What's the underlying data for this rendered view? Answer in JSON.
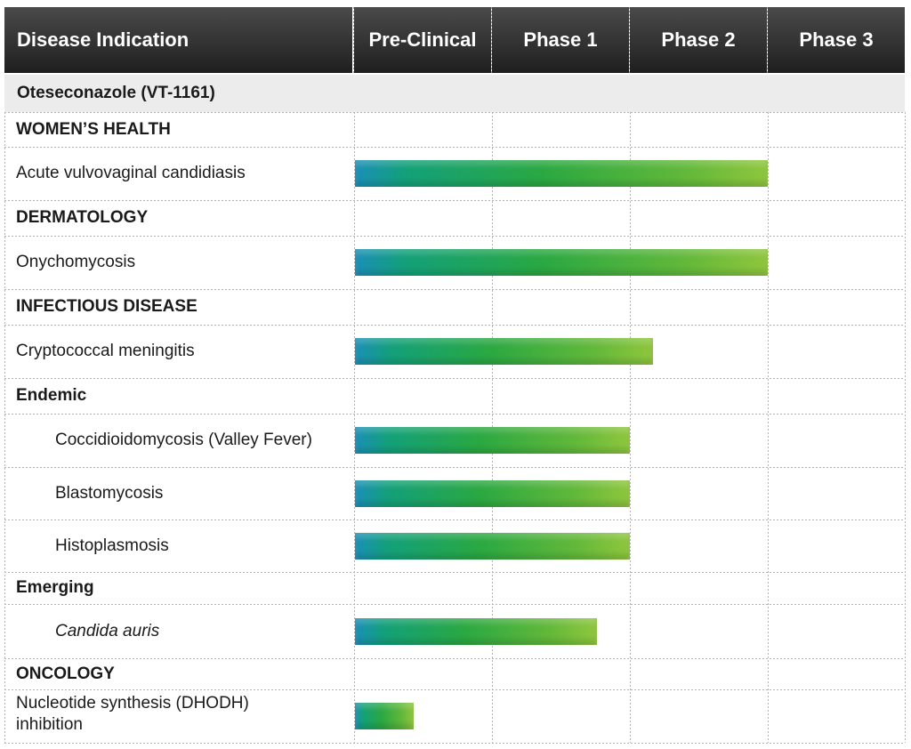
{
  "columns": {
    "indication": "Disease Indication",
    "phases": [
      "Pre-Clinical",
      "Phase 1",
      "Phase 2",
      "Phase 3"
    ]
  },
  "drug": "Oteseconazole (VT-1161)",
  "rows": [
    {
      "label": "WOMEN’S HEALTH",
      "kind": "section"
    },
    {
      "label": "Acute vulvovaginal candidiasis",
      "kind": "item",
      "progress": 3.0
    },
    {
      "label": "DERMATOLOGY",
      "kind": "section"
    },
    {
      "label": "Onychomycosis",
      "kind": "item",
      "progress": 3.0
    },
    {
      "label": "INFECTIOUS DISEASE",
      "kind": "section"
    },
    {
      "label": "Cryptococcal meningitis",
      "kind": "item",
      "progress": 2.17
    },
    {
      "label": "Endemic",
      "kind": "section"
    },
    {
      "label": "Coccidioidomycosis (Valley Fever)",
      "kind": "subitem",
      "progress": 2.0
    },
    {
      "label": "Blastomycosis",
      "kind": "subitem",
      "progress": 2.0
    },
    {
      "label": "Histoplasmosis",
      "kind": "subitem",
      "progress": 2.0
    },
    {
      "label": "Emerging",
      "kind": "section"
    },
    {
      "label": "Candida auris",
      "kind": "subitem",
      "italic": true,
      "progress": 1.76
    },
    {
      "label": "ONCOLOGY",
      "kind": "section"
    },
    {
      "label": "Nucleotide synthesis (DHODH) inhibition",
      "kind": "item",
      "progress": 0.43
    }
  ],
  "chart_data": {
    "type": "bar",
    "orientation": "horizontal",
    "x_axis_categories": [
      "Pre-Clinical",
      "Phase 1",
      "Phase 2",
      "Phase 3"
    ],
    "units": "development phases completed (0–4 scale, Pre-Clinical start = 0)",
    "categories": [
      "Acute vulvovaginal candidiasis",
      "Onychomycosis",
      "Cryptococcal meningitis",
      "Coccidioidomycosis (Valley Fever)",
      "Blastomycosis",
      "Histoplasmosis",
      "Candida auris",
      "Nucleotide synthesis (DHODH) inhibition"
    ],
    "values": [
      3.0,
      3.0,
      2.17,
      2.0,
      2.0,
      2.0,
      1.76,
      0.43
    ],
    "xlim": [
      0,
      4
    ],
    "colors": {
      "bar_start": "#1b8fb8",
      "bar_mid": "#2aa842",
      "bar_end": "#8fc63d",
      "header_bg": "#2b2b2b"
    }
  }
}
